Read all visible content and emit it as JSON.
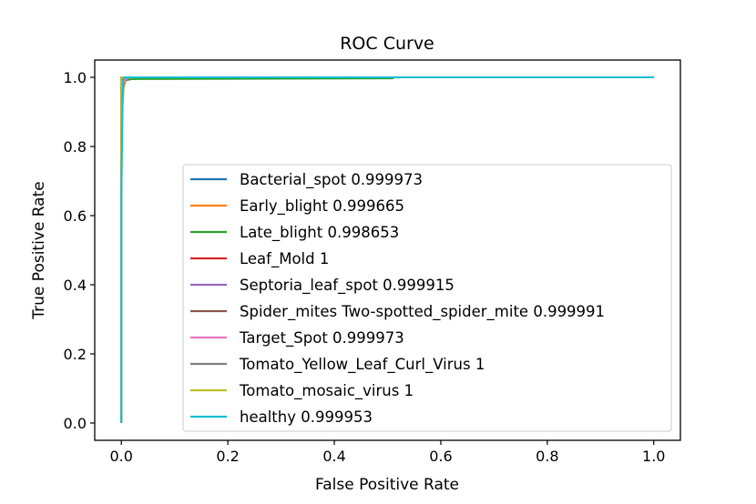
{
  "chart_data": {
    "type": "line",
    "title": "ROC Curve",
    "xlabel": "False Positive Rate",
    "ylabel": "True Positive Rate",
    "xlim": [
      -0.05,
      1.05
    ],
    "ylim": [
      -0.05,
      1.05
    ],
    "xticks": [
      0.0,
      0.2,
      0.4,
      0.6,
      0.8,
      1.0
    ],
    "xtick_labels": [
      "0.0",
      "0.2",
      "0.4",
      "0.6",
      "0.8",
      "1.0"
    ],
    "yticks": [
      0.0,
      0.2,
      0.4,
      0.6,
      0.8,
      1.0
    ],
    "ytick_labels": [
      "0.0",
      "0.2",
      "0.4",
      "0.6",
      "0.8",
      "1.0"
    ],
    "grid": false,
    "legend_position": "lower-right",
    "series": [
      {
        "name": "Bacterial_spot 0.999973",
        "color": "#1f77b4",
        "x": [
          0,
          0,
          0.002,
          0.004,
          1
        ],
        "y": [
          0,
          0.9,
          0.995,
          1,
          1
        ]
      },
      {
        "name": "Early_blight 0.999665",
        "color": "#ff7f0e",
        "x": [
          0,
          0,
          0.004,
          0.008,
          0.015,
          1
        ],
        "y": [
          0,
          0.85,
          0.97,
          0.99,
          1,
          1
        ]
      },
      {
        "name": "Late_blight 0.998653",
        "color": "#2ca02c",
        "x": [
          0,
          0,
          0.005,
          0.02,
          0.51,
          0.51,
          1
        ],
        "y": [
          0,
          0.9,
          0.99,
          0.995,
          0.997,
          1,
          1
        ]
      },
      {
        "name": "Leaf_Mold 1",
        "color": "#d62728",
        "x": [
          0,
          0,
          1
        ],
        "y": [
          0,
          1,
          1
        ]
      },
      {
        "name": "Septoria_leaf_spot 0.999915",
        "color": "#9467bd",
        "x": [
          0,
          0,
          0.004,
          0.01,
          1
        ],
        "y": [
          0,
          0.92,
          0.995,
          1,
          1
        ]
      },
      {
        "name": "Spider_mites Two-spotted_spider_mite 0.999991",
        "color": "#8c564b",
        "x": [
          0,
          0,
          0.002,
          1
        ],
        "y": [
          0,
          0.97,
          1,
          1
        ]
      },
      {
        "name": "Target_Spot 0.999973",
        "color": "#e377c2",
        "x": [
          0,
          0,
          0.004,
          0.012,
          1
        ],
        "y": [
          0,
          0.9,
          0.985,
          1,
          1
        ]
      },
      {
        "name": "Tomato_Yellow_Leaf_Curl_Virus 1",
        "color": "#7f7f7f",
        "x": [
          0,
          0,
          1
        ],
        "y": [
          0,
          1,
          1
        ]
      },
      {
        "name": "Tomato_mosaic_virus 1",
        "color": "#bcbd22",
        "x": [
          0,
          0,
          1
        ],
        "y": [
          0,
          1,
          1
        ]
      },
      {
        "name": "healthy 0.999953",
        "color": "#17becf",
        "x": [
          0,
          0,
          0.003,
          0.006,
          1
        ],
        "y": [
          0,
          0.65,
          0.99,
          1,
          1
        ]
      }
    ]
  }
}
